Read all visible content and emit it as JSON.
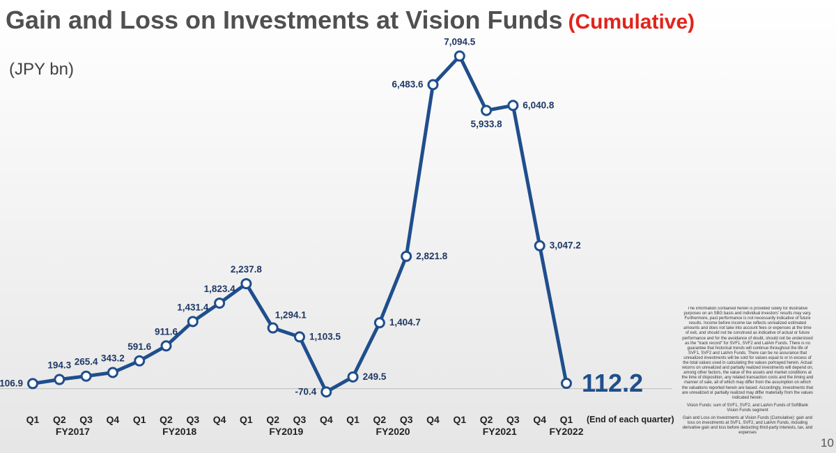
{
  "title": {
    "main": "Gain and Loss on Investments at Vision Funds",
    "suffix": "(Cumulative)"
  },
  "unit": "(JPY bn)",
  "colors": {
    "line": "#1f4e8c",
    "accent": "#e2231a",
    "label": "#1f3864"
  },
  "chart_data": {
    "type": "line",
    "title": "Gain and Loss on Investments at Vision Funds (Cumulative)",
    "ylabel": "(JPY bn)",
    "x_note": "(End of each quarter)",
    "ylim": [
      -150,
      7300
    ],
    "grid": false,
    "categories": [
      "Q1",
      "Q2",
      "Q3",
      "Q4",
      "Q1",
      "Q2",
      "Q3",
      "Q4",
      "Q1",
      "Q2",
      "Q3",
      "Q4",
      "Q1",
      "Q2",
      "Q3",
      "Q4",
      "Q1",
      "Q2",
      "Q3",
      "Q4",
      "Q1"
    ],
    "fiscal_years": [
      {
        "label": "FY2017",
        "start": 0,
        "end": 3
      },
      {
        "label": "FY2018",
        "start": 4,
        "end": 7
      },
      {
        "label": "FY2019",
        "start": 8,
        "end": 11
      },
      {
        "label": "FY2020",
        "start": 12,
        "end": 15
      },
      {
        "label": "FY2021",
        "start": 16,
        "end": 19
      },
      {
        "label": "FY2022",
        "start": 20,
        "end": 20
      }
    ],
    "values": [
      106.9,
      194.3,
      265.4,
      343.2,
      591.6,
      911.6,
      1431.4,
      1823.4,
      2237.8,
      1294.1,
      1103.5,
      -70.4,
      249.5,
      1404.7,
      2821.8,
      6483.6,
      7094.5,
      5933.8,
      6040.8,
      3047.2,
      112.2
    ],
    "labels": [
      "106.9",
      "194.3",
      "265.4",
      "343.2",
      "591.6",
      "911.6",
      "1,431.4",
      "1,823.4",
      "2,237.8",
      "1,294.1",
      "1,103.5",
      "-70.4",
      "249.5",
      "1,404.7",
      "2,821.8",
      "6,483.6",
      "7,094.5",
      "5,933.8",
      "6,040.8",
      "3,047.2",
      "112.2"
    ],
    "label_positions": [
      "left",
      "above",
      "above",
      "above",
      "above",
      "above",
      "above",
      "above",
      "above",
      "above-right",
      "right",
      "left",
      "right",
      "right",
      "right",
      "left",
      "above",
      "below",
      "right",
      "right",
      "right"
    ],
    "highlight_index": 20
  },
  "disclaimer": [
    "The information contained herein is provided solely for illustrative purposes on an SBG basis and individual investors' results may vary. Furthermore, past performance is not necessarily indicative of future results. Income before income tax reflects unrealized estimated amounts and does not take into account fees or expenses at the time of exit, and should not be construed as indicative of actual or future performance and for the avoidance of doubt, should not be understood as the \"track record\" for SVF1, SVF2 and LatAm Funds. There is no guarantee that historical trends will continue throughout the life of SVF1, SVF2 and LatAm Funds. There can be no assurance that unrealized investments will be sold for values equal to or in excess of the total values used in calculating the values portrayed herein. Actual returns on unrealized and partially realized investments will depend on, among other factors, the value of the assets and market conditions at the time of disposition, any related transaction costs and the timing and manner of sale, all of which may differ from the assumption on which the valuations reported herein are based. Accordingly, investments that are unrealized or partially realized may differ materially from the values indicated herein.",
    "Vision Funds: sum of SVF1, SVF2, and LatAm Funds of SoftBank Vision Funds segment",
    "Gain and Loss on Investments at Vision Funds (Cumulative): gain and loss on investments at SVF1, SVF2, and LatAm Funds, including derivative gain and loss before deducting third-party interests, tax, and expenses"
  ],
  "page_number": "10"
}
